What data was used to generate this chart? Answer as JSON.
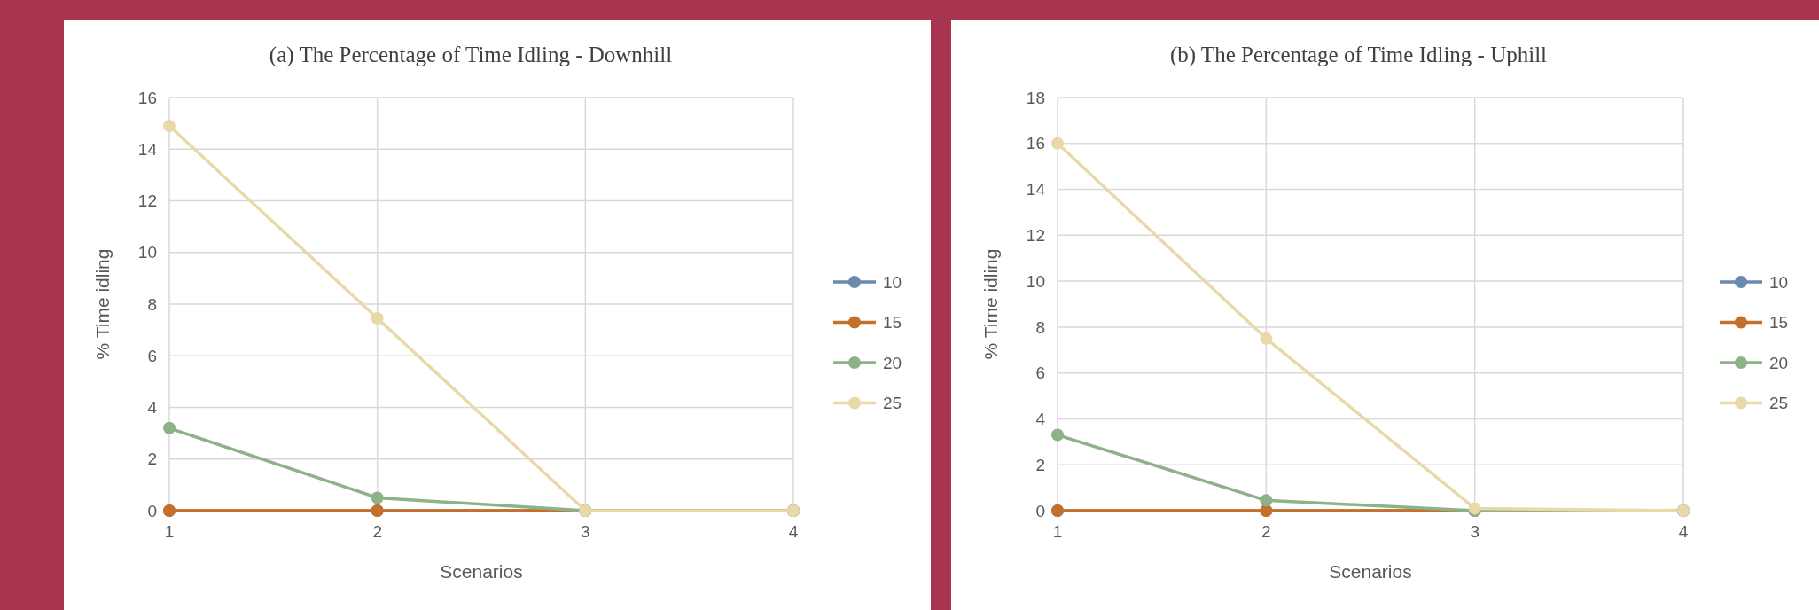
{
  "chart_data": [
    {
      "type": "line",
      "title": "(a) The Percentage of Time Idling - Downhill",
      "xlabel": "Scenarios",
      "ylabel": "% Time idling",
      "x": [
        1,
        2,
        3,
        4
      ],
      "xlim": [
        1,
        4
      ],
      "xticks": [
        1,
        2,
        3,
        4
      ],
      "ylim": [
        0,
        16
      ],
      "yticks": [
        0,
        2,
        4,
        6,
        8,
        10,
        12,
        14,
        16
      ],
      "grid": true,
      "legend": "right",
      "marker": "circle",
      "series": [
        {
          "name": "10",
          "color": "#6a89ad",
          "values": [
            0,
            0,
            0,
            0
          ]
        },
        {
          "name": "15",
          "color": "#c5702a",
          "values": [
            0,
            0,
            0,
            0
          ]
        },
        {
          "name": "20",
          "color": "#8db287",
          "values": [
            3.2,
            0.5,
            0,
            0
          ]
        },
        {
          "name": "25",
          "color": "#e9d9a9",
          "values": [
            14.9,
            7.45,
            0,
            0
          ]
        }
      ]
    },
    {
      "type": "line",
      "title": "(b) The Percentage of Time Idling - Uphill",
      "xlabel": "Scenarios",
      "ylabel": "% Time idling",
      "x": [
        1,
        2,
        3,
        4
      ],
      "xlim": [
        1,
        4
      ],
      "xticks": [
        1,
        2,
        3,
        4
      ],
      "ylim": [
        0,
        18
      ],
      "yticks": [
        0,
        2,
        4,
        6,
        8,
        10,
        12,
        14,
        16,
        18
      ],
      "grid": true,
      "legend": "right",
      "marker": "circle",
      "series": [
        {
          "name": "10",
          "color": "#6a89ad",
          "values": [
            0,
            0,
            0,
            0
          ]
        },
        {
          "name": "15",
          "color": "#c5702a",
          "values": [
            0,
            0,
            0,
            0
          ]
        },
        {
          "name": "20",
          "color": "#8db287",
          "values": [
            3.3,
            0.45,
            0,
            0
          ]
        },
        {
          "name": "25",
          "color": "#e9d9a9",
          "values": [
            16,
            7.5,
            0.1,
            0
          ]
        }
      ]
    }
  ]
}
